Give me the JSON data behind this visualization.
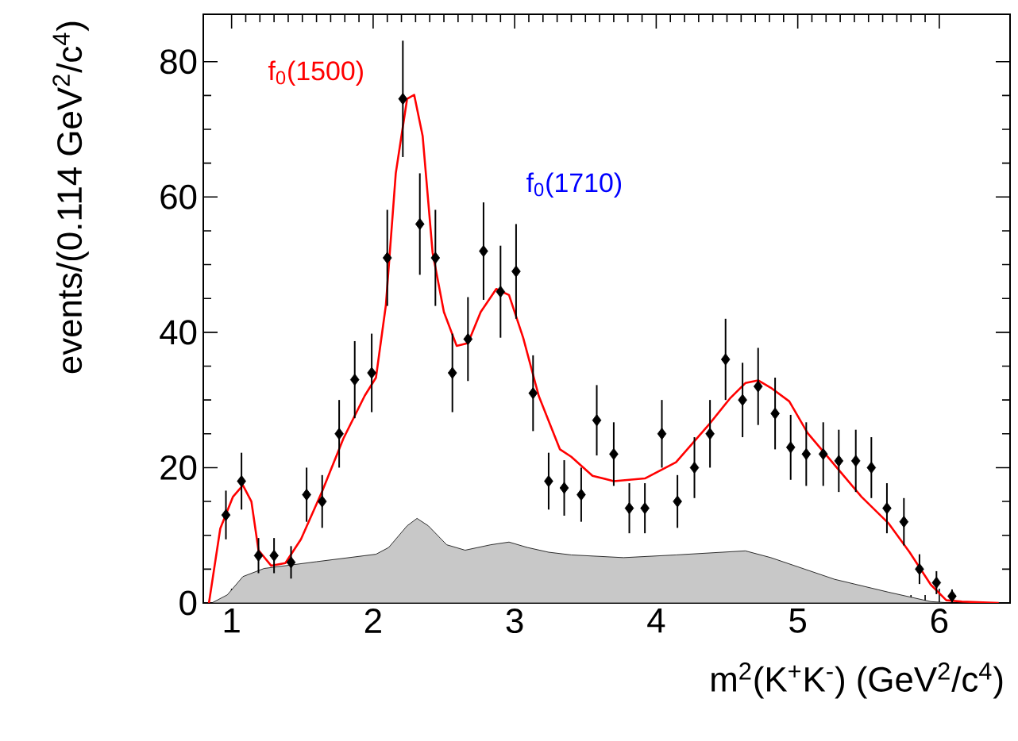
{
  "chart_data": {
    "type": "scatter",
    "xlabel": "m$^{2}$(K$^{+}$K$^{-}$) (GeV$^{2}$/c$^{4}$)",
    "ylabel": "events/(0.114 GeV$^{2}$/c$^{4}$)",
    "annotations": [
      "f$_{0}$(1500)",
      "f$_{0}$(1710)"
    ],
    "xlim": [
      0.8,
      6.5
    ],
    "ylim": [
      0,
      87
    ],
    "xticks": [
      1,
      2,
      3,
      4,
      5,
      6
    ],
    "yticks": [
      0,
      20,
      40,
      60,
      80
    ],
    "grid": false,
    "series": [
      {
        "type": "area",
        "color": "#c8c8c8",
        "x": [
          0.86,
          0.97,
          1.08,
          1.23,
          1.6,
          2.02,
          2.11,
          2.24,
          2.31,
          2.39,
          2.52,
          2.65,
          2.83,
          2.96,
          3.09,
          3.24,
          3.4,
          3.77,
          4.14,
          4.63,
          4.81,
          5.26,
          5.64,
          5.94,
          6.09
        ],
        "values": [
          0,
          1.2,
          3.9,
          5.1,
          6.1,
          7.2,
          8.2,
          11.4,
          12.5,
          11.4,
          8.6,
          7.8,
          8.6,
          9.0,
          8.2,
          7.5,
          7.1,
          6.7,
          7.1,
          7.7,
          6.7,
          3.5,
          1.6,
          0.2,
          0
        ]
      },
      {
        "type": "line",
        "color": "#ff0000",
        "marker": "none",
        "line_style": "solid",
        "x": [
          0.84,
          0.92,
          1.01,
          1.08,
          1.14,
          1.19,
          1.28,
          1.38,
          1.49,
          1.64,
          1.79,
          1.94,
          2.02,
          2.09,
          2.16,
          2.24,
          2.29,
          2.35,
          2.42,
          2.5,
          2.59,
          2.67,
          2.76,
          2.87,
          2.96,
          3.06,
          3.17,
          3.32,
          3.4,
          3.55,
          3.7,
          3.92,
          4.14,
          4.37,
          4.52,
          4.63,
          4.72,
          4.81,
          4.94,
          5.07,
          5.26,
          5.45,
          5.64,
          5.79,
          5.94,
          6.05,
          6.16,
          6.42
        ],
        "values": [
          0,
          11,
          15.7,
          17.4,
          15,
          7.8,
          5.5,
          5.9,
          9.4,
          16.5,
          24.3,
          30.6,
          33.3,
          44,
          63.5,
          74.5,
          75.1,
          69,
          51.8,
          43,
          38,
          38.4,
          43,
          46.4,
          45.5,
          39.2,
          30.6,
          22.7,
          21.6,
          18.8,
          18.0,
          18.4,
          20.8,
          26.3,
          30.2,
          32.5,
          32.9,
          31.8,
          29.8,
          25.1,
          20.4,
          15.7,
          11.8,
          7.5,
          2.7,
          0.4,
          0.2,
          0
        ]
      },
      {
        "color": "#000000",
        "marker": "diamond",
        "x": [
          0.96,
          1.07,
          1.19,
          1.3,
          1.42,
          1.53,
          1.64,
          1.76,
          1.87,
          1.99,
          2.1,
          2.21,
          2.33,
          2.44,
          2.56,
          2.67,
          2.78,
          2.9,
          3.01,
          3.13,
          3.24,
          3.35,
          3.47,
          3.58,
          3.7,
          3.81,
          3.92,
          4.04,
          4.15,
          4.27,
          4.38,
          4.49,
          4.61,
          4.72,
          4.84,
          4.95,
          5.06,
          5.18,
          5.29,
          5.41,
          5.52,
          5.63,
          5.75,
          5.86,
          5.98,
          6.09
        ],
        "values": [
          13,
          18,
          7,
          7,
          6,
          16,
          15,
          25,
          33,
          34,
          51,
          74.5,
          56,
          51,
          34,
          39,
          52,
          46,
          49,
          31,
          18,
          17,
          16,
          27,
          22,
          14,
          14,
          25,
          15,
          20,
          25,
          36,
          30,
          32,
          28,
          23,
          22,
          22,
          21,
          21,
          20,
          14,
          12,
          5,
          3,
          1
        ],
        "errors": [
          3.6,
          4.2,
          2.6,
          2.6,
          2.4,
          4,
          3.9,
          5,
          5.7,
          5.8,
          7.1,
          8.6,
          7.5,
          7.1,
          5.8,
          6.2,
          7.2,
          6.8,
          7,
          5.6,
          4.2,
          4.1,
          4,
          5.2,
          4.7,
          3.7,
          3.7,
          5,
          3.9,
          4.5,
          5,
          6,
          5.5,
          5.7,
          5.3,
          4.8,
          4.7,
          4.7,
          4.6,
          4.6,
          4.5,
          3.7,
          3.5,
          2.2,
          1.7,
          1
        ]
      }
    ]
  }
}
